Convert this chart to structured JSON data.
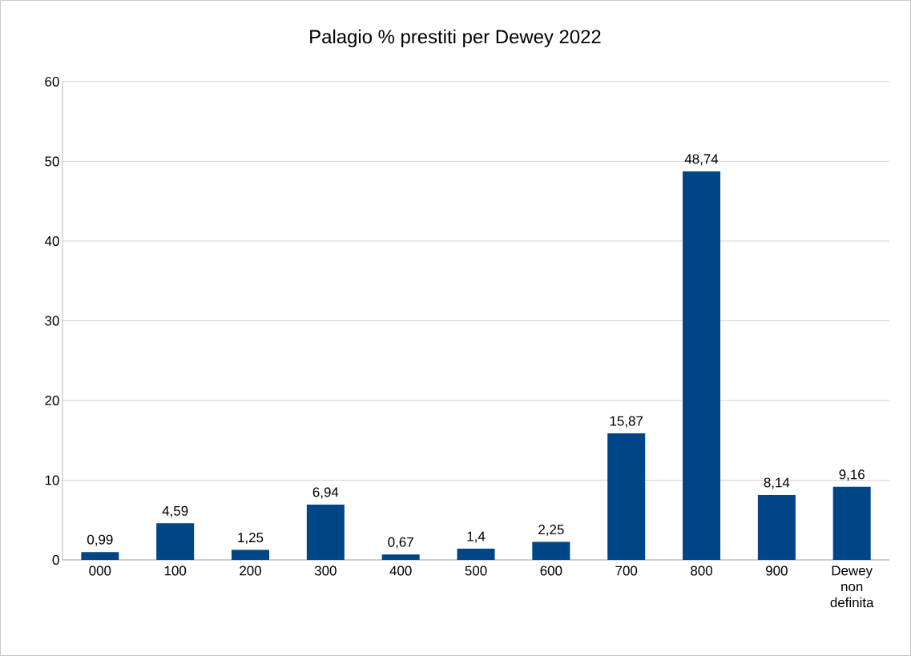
{
  "chart_data": {
    "type": "bar",
    "title": "Palagio % prestiti per Dewey 2022",
    "categories": [
      "000",
      "100",
      "200",
      "300",
      "400",
      "500",
      "600",
      "700",
      "800",
      "900",
      "Dewey non definita"
    ],
    "values": [
      0.99,
      4.59,
      1.25,
      6.94,
      0.67,
      1.4,
      2.25,
      15.87,
      48.74,
      8.14,
      9.16
    ],
    "value_labels": [
      "0,99",
      "4,59",
      "1,25",
      "6,94",
      "0,67",
      "1,4",
      "2,25",
      "15,87",
      "48,74",
      "8,14",
      "9,16"
    ],
    "color": "#004586",
    "ylim": [
      0,
      60
    ],
    "yticks": [
      0,
      10,
      20,
      30,
      40,
      50,
      60
    ],
    "grid": "y"
  }
}
